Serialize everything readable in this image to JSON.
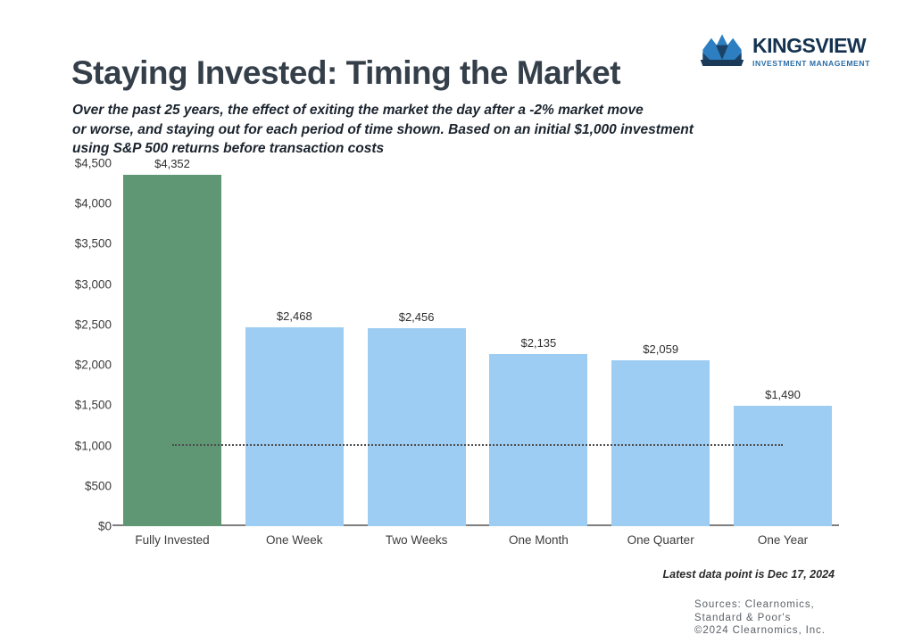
{
  "logo": {
    "wordmark": "KINGSVIEW",
    "tagline": "INVESTMENT MANAGEMENT"
  },
  "header": {
    "title": "Staying Invested: Timing the Market",
    "subtitle_lines": [
      "Over the past 25 years, the effect of exiting the market the day after a -2% market move",
      "or worse, and staying out for each period of time shown. Based on an initial $1,000 investment",
      "using S&P 500 returns before transaction costs"
    ]
  },
  "chart_data": {
    "type": "bar",
    "title": "Staying Invested: Timing the Market",
    "subtitle": "Over the past 25 years, the effect of exiting the market the day after a -2% market move or worse, and staying out for each period of time shown. Based on an initial $1,000 investment using S&P 500 returns before transaction costs",
    "categories": [
      "Fully Invested",
      "One Week",
      "Two Weeks",
      "One Month",
      "One Quarter",
      "One Year"
    ],
    "values": [
      4352,
      2468,
      2456,
      2135,
      2059,
      1490
    ],
    "value_labels": [
      "$4,352",
      "$2,468",
      "$2,456",
      "$2,135",
      "$2,059",
      "$1,490"
    ],
    "bar_colors": [
      "#5f9673",
      "#9ecdf3",
      "#9ecdf3",
      "#9ecdf3",
      "#9ecdf3",
      "#9ecdf3"
    ],
    "xlabel": "",
    "ylabel": "",
    "ylim": [
      0,
      4500
    ],
    "ytick_step": 500,
    "ytick_labels": [
      "$0",
      "$500",
      "$1,000",
      "$1,500",
      "$2,000",
      "$2,500",
      "$3,000",
      "$3,500",
      "$4,000",
      "$4,500"
    ],
    "grid": false,
    "legend": "none",
    "reference_line": {
      "value": 1000,
      "style": "dotted"
    }
  },
  "footer": {
    "latest_note": "Latest data point is Dec 17, 2024",
    "source_lines": [
      "Sources: Clearnomics,",
      "Standard & Poor's",
      "©2024 Clearnomics, Inc."
    ]
  },
  "colors": {
    "highlight_bar": "#5f9673",
    "default_bar": "#9ecdf3",
    "axis_line": "#7f7f7f",
    "reference_line": "#4d4d4d",
    "title_text": "#353f4a",
    "logo_navy": "#14324f",
    "logo_blue": "#2d7fc1"
  }
}
